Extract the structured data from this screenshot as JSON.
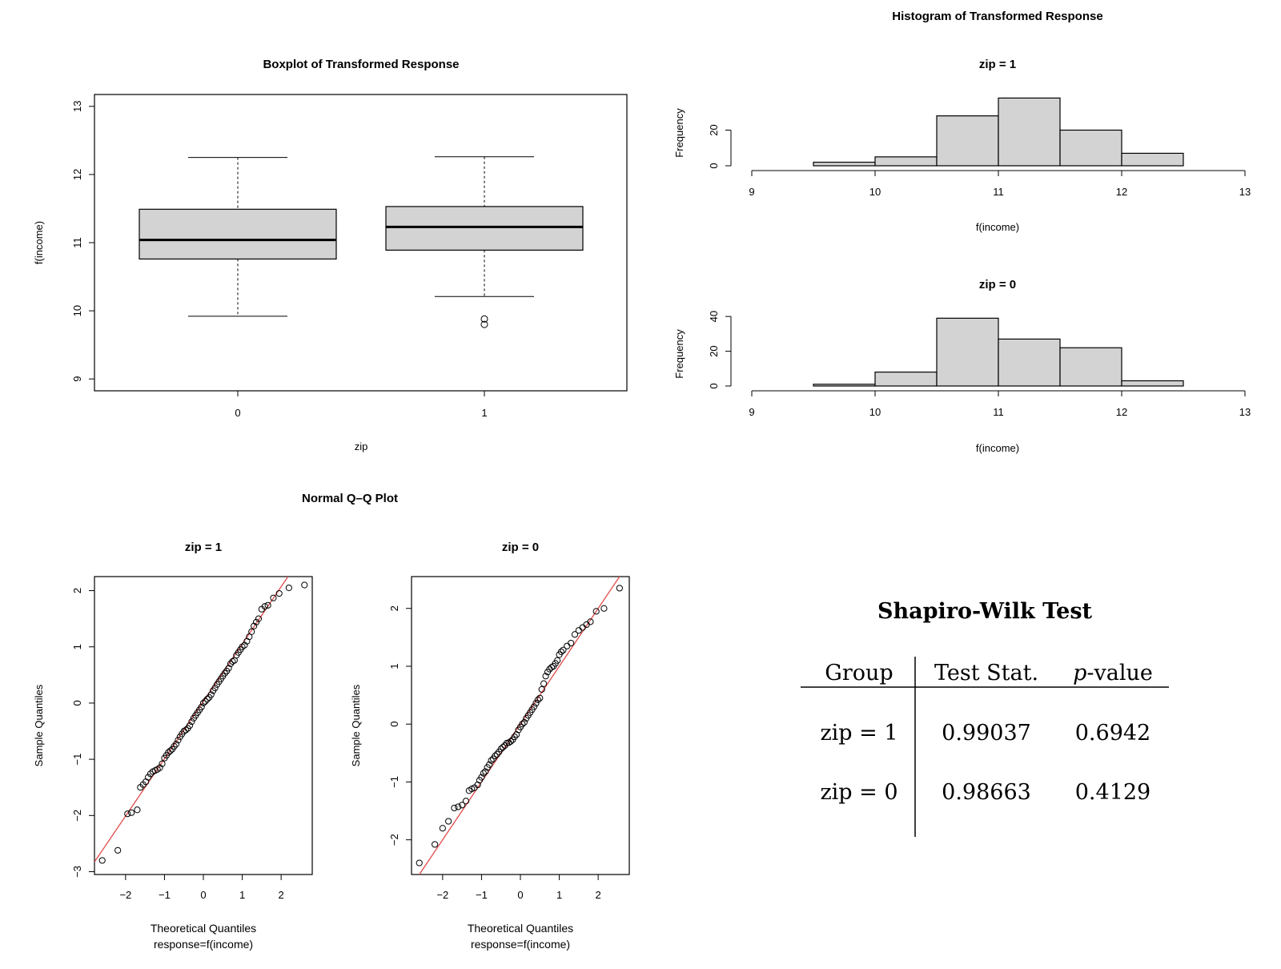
{
  "boxplot": {
    "chart_data": {
      "type": "box",
      "title": "Boxplot of Transformed Response",
      "xlabel": "zip",
      "ylabel": "f(income)",
      "categories": [
        "0",
        "1"
      ],
      "ylim": [
        9,
        13
      ],
      "yticks": [
        "9",
        "10",
        "11",
        "12",
        "13"
      ],
      "boxes": [
        {
          "category": "0",
          "whisker_low": 9.92,
          "q1": 10.76,
          "median": 11.04,
          "q3": 11.49,
          "whisker_high": 12.25,
          "outliers": []
        },
        {
          "category": "1",
          "whisker_low": 10.21,
          "q1": 10.89,
          "median": 11.23,
          "q3": 11.53,
          "whisker_high": 12.26,
          "outliers": [
            9.8,
            9.88
          ]
        }
      ]
    }
  },
  "histogram": {
    "main_title": "Histogram of Transformed Response",
    "panels": [
      {
        "chart_data": {
          "type": "histogram",
          "title": "zip = 1",
          "xlabel": "f(income)",
          "ylabel": "Frequency",
          "xlim": [
            9,
            13
          ],
          "xticks": [
            "9",
            "10",
            "11",
            "12",
            "13"
          ],
          "yticks": [
            "0",
            "20"
          ],
          "ymax": 31,
          "bins": [
            {
              "from": 9.5,
              "to": 10.0,
              "count": 2
            },
            {
              "from": 10.0,
              "to": 10.5,
              "count": 5
            },
            {
              "from": 10.5,
              "to": 11.0,
              "count": 28
            },
            {
              "from": 11.0,
              "to": 11.5,
              "count": 38
            },
            {
              "from": 11.5,
              "to": 12.0,
              "count": 20
            },
            {
              "from": 12.0,
              "to": 12.5,
              "count": 7
            }
          ]
        }
      },
      {
        "chart_data": {
          "type": "histogram",
          "title": "zip = 0",
          "xlabel": "f(income)",
          "ylabel": "Frequency",
          "xlim": [
            9,
            13
          ],
          "xticks": [
            "9",
            "10",
            "11",
            "12",
            "13"
          ],
          "yticks": [
            "0",
            "20",
            "40"
          ],
          "ymax": 41,
          "bins": [
            {
              "from": 9.5,
              "to": 10.0,
              "count": 1
            },
            {
              "from": 10.0,
              "to": 10.5,
              "count": 8
            },
            {
              "from": 10.5,
              "to": 11.0,
              "count": 39
            },
            {
              "from": 11.0,
              "to": 11.5,
              "count": 27
            },
            {
              "from": 11.5,
              "to": 12.0,
              "count": 22
            },
            {
              "from": 12.0,
              "to": 12.5,
              "count": 3
            }
          ]
        }
      }
    ]
  },
  "qq": {
    "main_title": "Normal Q–Q Plot",
    "panels": [
      {
        "chart_data": {
          "type": "scatter",
          "title": "zip = 1",
          "xlabel": "Theoretical Quantiles",
          "xsub": "response=f(income)",
          "ylabel": "Sample Quantiles",
          "xlim": [
            -2.8,
            2.8
          ],
          "ylim": [
            -3.05,
            2.25
          ],
          "xticks": [
            "−2",
            "−1",
            "0",
            "1",
            "2"
          ],
          "yticks": [
            "−3",
            "−2",
            "−1",
            "0",
            "1",
            "2"
          ],
          "ref_line": {
            "slope": 1.02,
            "intercept": 0.03
          },
          "points": [
            [
              -2.6,
              -2.8
            ],
            [
              -2.2,
              -2.62
            ],
            [
              -1.95,
              -1.97
            ],
            [
              -1.85,
              -1.95
            ],
            [
              -1.7,
              -1.9
            ],
            [
              -1.62,
              -1.5
            ],
            [
              -1.55,
              -1.45
            ],
            [
              -1.48,
              -1.4
            ],
            [
              -1.42,
              -1.32
            ],
            [
              -1.36,
              -1.26
            ],
            [
              -1.3,
              -1.22
            ],
            [
              -1.24,
              -1.2
            ],
            [
              -1.18,
              -1.18
            ],
            [
              -1.12,
              -1.15
            ],
            [
              -1.06,
              -1.08
            ],
            [
              -1.0,
              -0.98
            ],
            [
              -0.95,
              -0.93
            ],
            [
              -0.9,
              -0.88
            ],
            [
              -0.85,
              -0.85
            ],
            [
              -0.8,
              -0.82
            ],
            [
              -0.75,
              -0.77
            ],
            [
              -0.7,
              -0.73
            ],
            [
              -0.65,
              -0.66
            ],
            [
              -0.6,
              -0.6
            ],
            [
              -0.55,
              -0.55
            ],
            [
              -0.5,
              -0.5
            ],
            [
              -0.45,
              -0.48
            ],
            [
              -0.4,
              -0.45
            ],
            [
              -0.35,
              -0.4
            ],
            [
              -0.3,
              -0.33
            ],
            [
              -0.25,
              -0.27
            ],
            [
              -0.2,
              -0.22
            ],
            [
              -0.15,
              -0.17
            ],
            [
              -0.1,
              -0.12
            ],
            [
              -0.05,
              -0.07
            ],
            [
              0.0,
              0.0
            ],
            [
              0.05,
              0.03
            ],
            [
              0.1,
              0.07
            ],
            [
              0.15,
              0.1
            ],
            [
              0.2,
              0.15
            ],
            [
              0.25,
              0.22
            ],
            [
              0.3,
              0.27
            ],
            [
              0.35,
              0.33
            ],
            [
              0.4,
              0.38
            ],
            [
              0.45,
              0.43
            ],
            [
              0.5,
              0.48
            ],
            [
              0.55,
              0.53
            ],
            [
              0.6,
              0.57
            ],
            [
              0.65,
              0.62
            ],
            [
              0.7,
              0.7
            ],
            [
              0.75,
              0.74
            ],
            [
              0.8,
              0.76
            ],
            [
              0.85,
              0.85
            ],
            [
              0.9,
              0.9
            ],
            [
              0.95,
              0.95
            ],
            [
              1.0,
              1.0
            ],
            [
              1.06,
              1.03
            ],
            [
              1.12,
              1.1
            ],
            [
              1.18,
              1.18
            ],
            [
              1.24,
              1.27
            ],
            [
              1.3,
              1.37
            ],
            [
              1.36,
              1.44
            ],
            [
              1.42,
              1.5
            ],
            [
              1.5,
              1.67
            ],
            [
              1.58,
              1.72
            ],
            [
              1.66,
              1.74
            ],
            [
              1.8,
              1.87
            ],
            [
              1.95,
              1.95
            ],
            [
              2.2,
              2.05
            ],
            [
              2.6,
              2.1
            ]
          ]
        }
      },
      {
        "chart_data": {
          "type": "scatter",
          "title": "zip = 0",
          "xlabel": "Theoretical Quantiles",
          "xsub": "response=f(income)",
          "ylabel": "Sample Quantiles",
          "xlim": [
            -2.8,
            2.8
          ],
          "ylim": [
            -2.6,
            2.55
          ],
          "xticks": [
            "−2",
            "−1",
            "0",
            "1",
            "2"
          ],
          "yticks": [
            "−2",
            "−1",
            "0",
            "1",
            "2"
          ],
          "ref_line": {
            "slope": 1.0,
            "intercept": 0.0
          },
          "points": [
            [
              -2.6,
              -2.4
            ],
            [
              -2.2,
              -2.08
            ],
            [
              -2.0,
              -1.8
            ],
            [
              -1.85,
              -1.68
            ],
            [
              -1.7,
              -1.45
            ],
            [
              -1.6,
              -1.43
            ],
            [
              -1.5,
              -1.4
            ],
            [
              -1.4,
              -1.33
            ],
            [
              -1.32,
              -1.15
            ],
            [
              -1.25,
              -1.12
            ],
            [
              -1.18,
              -1.1
            ],
            [
              -1.1,
              -1.05
            ],
            [
              -1.05,
              -0.97
            ],
            [
              -1.0,
              -0.92
            ],
            [
              -0.95,
              -0.85
            ],
            [
              -0.9,
              -0.82
            ],
            [
              -0.85,
              -0.75
            ],
            [
              -0.8,
              -0.7
            ],
            [
              -0.75,
              -0.63
            ],
            [
              -0.7,
              -0.6
            ],
            [
              -0.65,
              -0.55
            ],
            [
              -0.6,
              -0.52
            ],
            [
              -0.55,
              -0.48
            ],
            [
              -0.5,
              -0.43
            ],
            [
              -0.45,
              -0.4
            ],
            [
              -0.4,
              -0.37
            ],
            [
              -0.35,
              -0.33
            ],
            [
              -0.3,
              -0.32
            ],
            [
              -0.25,
              -0.3
            ],
            [
              -0.2,
              -0.27
            ],
            [
              -0.15,
              -0.22
            ],
            [
              -0.1,
              -0.18
            ],
            [
              -0.05,
              -0.1
            ],
            [
              0.0,
              -0.05
            ],
            [
              0.05,
              0.0
            ],
            [
              0.1,
              0.03
            ],
            [
              0.15,
              0.1
            ],
            [
              0.2,
              0.15
            ],
            [
              0.25,
              0.2
            ],
            [
              0.3,
              0.25
            ],
            [
              0.35,
              0.3
            ],
            [
              0.4,
              0.36
            ],
            [
              0.45,
              0.42
            ],
            [
              0.5,
              0.45
            ],
            [
              0.55,
              0.6
            ],
            [
              0.6,
              0.7
            ],
            [
              0.65,
              0.83
            ],
            [
              0.7,
              0.9
            ],
            [
              0.75,
              0.95
            ],
            [
              0.8,
              0.98
            ],
            [
              0.85,
              1.0
            ],
            [
              0.9,
              1.05
            ],
            [
              0.95,
              1.1
            ],
            [
              1.0,
              1.2
            ],
            [
              1.05,
              1.25
            ],
            [
              1.1,
              1.28
            ],
            [
              1.2,
              1.35
            ],
            [
              1.3,
              1.4
            ],
            [
              1.4,
              1.55
            ],
            [
              1.5,
              1.62
            ],
            [
              1.6,
              1.67
            ],
            [
              1.7,
              1.72
            ],
            [
              1.8,
              1.77
            ],
            [
              1.95,
              1.95
            ],
            [
              2.15,
              2.0
            ],
            [
              2.55,
              2.35
            ]
          ]
        }
      }
    ]
  },
  "shapiro": {
    "chart_data": {
      "type": "table",
      "title": "Shapiro-Wilk Test",
      "headers": [
        "Group",
        "Test Stat.",
        "p-value"
      ],
      "header_p": "p",
      "header_p_rest": "-value",
      "rows": [
        {
          "group": "zip = 1",
          "stat": "0.99037",
          "p": "0.6942"
        },
        {
          "group": "zip = 0",
          "stat": "0.98663",
          "p": "0.4129"
        }
      ]
    }
  },
  "colors": {
    "box_fill": "#d3d3d3",
    "bar_fill": "#d3d3d3",
    "stroke": "#000000",
    "ref_line": "#e04a4a"
  }
}
